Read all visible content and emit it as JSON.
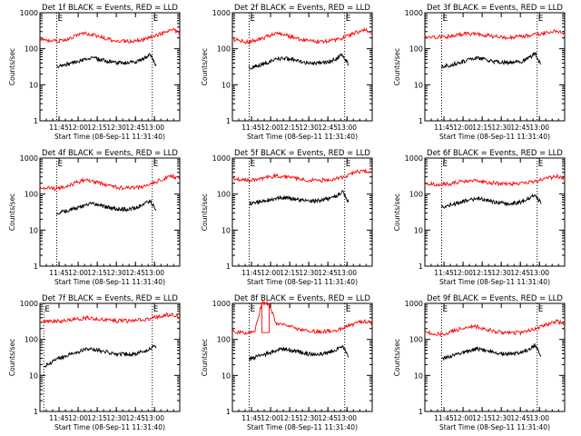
{
  "figure": {
    "background": "#ffffff",
    "events_color": "#000000",
    "lld_color": "#ff0000"
  },
  "chart_data": [
    {
      "type": "line",
      "title": "Det 1f BLACK = Events, RED = LLD",
      "xlabel": "Start Time (08-Sep-11 11:31:40)",
      "ylabel": "Counts/sec",
      "ylog": true,
      "ylim": [
        1,
        1000
      ],
      "yticks": [
        "1",
        "10",
        "100",
        "1000"
      ],
      "xlim_min": [
        11.5,
        13.33
      ],
      "xticks": [
        "11:45",
        "12:00",
        "12:15",
        "12:30",
        "12:45",
        "13:00"
      ],
      "marker": "E",
      "marker_times": [
        11.72,
        12.97
      ],
      "series": [
        {
          "name": "Events",
          "color": "#000000",
          "shape": "a",
          "start": 11.72,
          "end": 13.02,
          "values": [
            33,
            35,
            38,
            42,
            47,
            52,
            55,
            52,
            48,
            44,
            42,
            41,
            40,
            42,
            45,
            55,
            70,
            35
          ]
        },
        {
          "name": "LLD",
          "color": "#ff0000",
          "shape": "a",
          "start": 11.5,
          "end": 13.33,
          "values": [
            190,
            170,
            160,
            170,
            190,
            230,
            260,
            250,
            220,
            190,
            170,
            165,
            160,
            165,
            175,
            200,
            240,
            290,
            340,
            280
          ]
        }
      ]
    },
    {
      "type": "line",
      "title": "Det 2f BLACK = Events, RED = LLD",
      "xlabel": "Start Time (08-Sep-11 11:31:40)",
      "ylabel": "Counts/sec",
      "ylog": true,
      "ylim": [
        1,
        1000
      ],
      "yticks": [
        "1",
        "10",
        "100",
        "1000"
      ],
      "xlim_min": [
        11.5,
        13.33
      ],
      "xticks": [
        "11:45",
        "12:00",
        "12:15",
        "12:30",
        "12:45",
        "13:00"
      ],
      "marker": "E",
      "marker_times": [
        11.72,
        12.97
      ],
      "series": [
        {
          "name": "Events",
          "color": "#000000",
          "shape": "a",
          "start": 11.72,
          "end": 13.02,
          "values": [
            30,
            32,
            36,
            40,
            46,
            52,
            55,
            52,
            47,
            43,
            41,
            40,
            40,
            42,
            45,
            55,
            70,
            35
          ]
        },
        {
          "name": "LLD",
          "color": "#ff0000",
          "shape": "a",
          "start": 11.5,
          "end": 13.33,
          "values": [
            185,
            165,
            155,
            165,
            190,
            230,
            255,
            245,
            215,
            185,
            170,
            160,
            158,
            162,
            175,
            200,
            240,
            290,
            330,
            270
          ]
        }
      ]
    },
    {
      "type": "line",
      "title": "Det 3f BLACK = Events, RED = LLD",
      "xlabel": "Start Time (08-Sep-11 11:31:40)",
      "ylabel": "Counts/sec",
      "ylog": true,
      "ylim": [
        1,
        1000
      ],
      "yticks": [
        "1",
        "10",
        "100",
        "1000"
      ],
      "xlim_min": [
        11.5,
        13.33
      ],
      "xticks": [
        "11:45",
        "12:00",
        "12:15",
        "12:30",
        "12:45",
        "13:00"
      ],
      "marker": "E",
      "marker_times": [
        11.72,
        12.97
      ],
      "series": [
        {
          "name": "Events",
          "color": "#000000",
          "shape": "a",
          "start": 11.72,
          "end": 13.02,
          "values": [
            32,
            34,
            37,
            41,
            46,
            52,
            55,
            52,
            48,
            44,
            42,
            41,
            40,
            42,
            46,
            56,
            75,
            36
          ]
        },
        {
          "name": "LLD",
          "color": "#ff0000",
          "shape": "b",
          "start": 11.5,
          "end": 13.33,
          "values": [
            220,
            215,
            210,
            215,
            230,
            250,
            260,
            255,
            240,
            225,
            215,
            210,
            210,
            215,
            225,
            245,
            270,
            300,
            320,
            280
          ]
        }
      ]
    },
    {
      "type": "line",
      "title": "Det 4f BLACK = Events, RED = LLD",
      "xlabel": "Start Time (08-Sep-11 11:31:40)",
      "ylabel": "Counts/sec",
      "ylog": true,
      "ylim": [
        1,
        1000
      ],
      "yticks": [
        "1",
        "10",
        "100",
        "1000"
      ],
      "xlim_min": [
        11.5,
        13.33
      ],
      "xticks": [
        "11:45",
        "12:00",
        "12:15",
        "12:30",
        "12:45",
        "13:00"
      ],
      "marker": "E",
      "marker_times": [
        11.72,
        12.97
      ],
      "series": [
        {
          "name": "Events",
          "color": "#000000",
          "shape": "a",
          "start": 11.72,
          "end": 13.02,
          "values": [
            30,
            32,
            35,
            40,
            45,
            50,
            54,
            50,
            46,
            42,
            40,
            38,
            38,
            40,
            44,
            52,
            68,
            34
          ]
        },
        {
          "name": "LLD",
          "color": "#ff0000",
          "shape": "a",
          "start": 11.5,
          "end": 13.33,
          "values": [
            160,
            145,
            140,
            150,
            170,
            210,
            240,
            230,
            200,
            175,
            160,
            150,
            148,
            152,
            165,
            190,
            230,
            280,
            320,
            260
          ]
        }
      ]
    },
    {
      "type": "line",
      "title": "Det 5f BLACK = Events, RED = LLD",
      "xlabel": "Start Time (08-Sep-11 11:31:40)",
      "ylabel": "Counts/sec",
      "ylog": true,
      "ylim": [
        1,
        1000
      ],
      "yticks": [
        "1",
        "10",
        "100",
        "1000"
      ],
      "xlim_min": [
        11.5,
        13.33
      ],
      "xticks": [
        "11:45",
        "12:00",
        "12:15",
        "12:30",
        "12:45",
        "13:00"
      ],
      "marker": "E",
      "marker_times": [
        11.72,
        12.97
      ],
      "series": [
        {
          "name": "Events",
          "color": "#000000",
          "shape": "b",
          "start": 11.72,
          "end": 13.02,
          "values": [
            55,
            58,
            62,
            68,
            72,
            78,
            80,
            76,
            70,
            66,
            64,
            64,
            66,
            70,
            78,
            92,
            118,
            60
          ]
        },
        {
          "name": "LLD",
          "color": "#ff0000",
          "shape": "b",
          "start": 11.5,
          "end": 13.33,
          "values": [
            270,
            255,
            245,
            250,
            270,
            300,
            320,
            310,
            285,
            260,
            245,
            240,
            242,
            250,
            270,
            300,
            350,
            420,
            450,
            380
          ]
        }
      ]
    },
    {
      "type": "line",
      "title": "Det 6f BLACK = Events, RED = LLD",
      "xlabel": "Start Time (08-Sep-11 11:31:40)",
      "ylabel": "Counts/sec",
      "ylog": true,
      "ylim": [
        1,
        1000
      ],
      "yticks": [
        "1",
        "10",
        "100",
        "1000"
      ],
      "xlim_min": [
        11.5,
        13.33
      ],
      "xticks": [
        "11:45",
        "12:00",
        "12:15",
        "12:30",
        "12:45",
        "13:00"
      ],
      "marker": "E",
      "marker_times": [
        11.72,
        12.97
      ],
      "series": [
        {
          "name": "Events",
          "color": "#000000",
          "shape": "b",
          "start": 11.72,
          "end": 13.02,
          "values": [
            45,
            48,
            52,
            58,
            64,
            70,
            74,
            72,
            66,
            60,
            57,
            55,
            55,
            58,
            64,
            76,
            95,
            55
          ]
        },
        {
          "name": "LLD",
          "color": "#ff0000",
          "shape": "b",
          "start": 11.5,
          "end": 13.33,
          "values": [
            200,
            190,
            185,
            190,
            205,
            225,
            240,
            235,
            220,
            205,
            195,
            190,
            190,
            195,
            205,
            225,
            250,
            285,
            310,
            270
          ]
        }
      ]
    },
    {
      "type": "line",
      "title": "Det 7f BLACK = Events, RED = LLD",
      "xlabel": "Start Time (08-Sep-11 11:31:40)",
      "ylabel": "Counts/sec",
      "ylog": true,
      "ylim": [
        1,
        1000
      ],
      "yticks": [
        "1",
        "10",
        "100",
        "1000"
      ],
      "xlim_min": [
        11.5,
        13.33
      ],
      "xticks": [
        "11:45",
        "12:00",
        "12:15",
        "12:30",
        "12:45",
        "13:00"
      ],
      "marker": "E",
      "marker_times": [
        11.55,
        12.97
      ],
      "series": [
        {
          "name": "Events",
          "color": "#000000",
          "shape": "a",
          "start": 11.55,
          "end": 13.02,
          "values": [
            18,
            22,
            28,
            33,
            38,
            44,
            50,
            54,
            51,
            47,
            43,
            40,
            39,
            39,
            41,
            45,
            53,
            68
          ]
        },
        {
          "name": "LLD",
          "color": "#ff0000",
          "shape": "b",
          "start": 11.5,
          "end": 13.33,
          "values": [
            330,
            320,
            310,
            320,
            340,
            370,
            390,
            385,
            365,
            345,
            330,
            325,
            325,
            335,
            355,
            385,
            425,
            470,
            490,
            430
          ]
        }
      ]
    },
    {
      "type": "line",
      "title": "Det 8f BLACK = Events, RED = LLD",
      "xlabel": "Start Time (08-Sep-11 11:31:40)",
      "ylabel": "Counts/sec",
      "ylog": true,
      "ylim": [
        1,
        1000
      ],
      "yticks": [
        "1",
        "10",
        "100",
        "1000"
      ],
      "xlim_min": [
        11.5,
        13.33
      ],
      "xticks": [
        "11:45",
        "12:00",
        "12:15",
        "12:30",
        "12:45",
        "13:00"
      ],
      "marker": "E",
      "marker_times": [
        11.72,
        12.97
      ],
      "series": [
        {
          "name": "Events",
          "color": "#000000",
          "shape": "a",
          "start": 11.72,
          "end": 13.02,
          "values": [
            30,
            32,
            35,
            40,
            45,
            50,
            54,
            50,
            46,
            42,
            40,
            39,
            39,
            41,
            45,
            54,
            68,
            34
          ]
        },
        {
          "name": "LLD",
          "color": "#ff0000",
          "shape": "spike",
          "start": 11.5,
          "end": 13.33,
          "values": [
            170,
            155,
            150,
            155,
            1000,
            1000,
            260,
            250,
            220,
            190,
            175,
            168,
            165,
            170,
            180,
            205,
            245,
            290,
            330,
            270
          ]
        }
      ]
    },
    {
      "type": "line",
      "title": "Det 9f BLACK = Events, RED = LLD",
      "xlabel": "Start Time (08-Sep-11 11:31:40)",
      "ylabel": "Counts/sec",
      "ylog": true,
      "ylim": [
        1,
        1000
      ],
      "yticks": [
        "1",
        "10",
        "100",
        "1000"
      ],
      "xlim_min": [
        11.5,
        13.33
      ],
      "xticks": [
        "11:45",
        "12:00",
        "12:15",
        "12:30",
        "12:45",
        "13:00"
      ],
      "marker": "E",
      "marker_times": [
        11.72,
        12.97
      ],
      "series": [
        {
          "name": "Events",
          "color": "#000000",
          "shape": "a",
          "start": 11.72,
          "end": 13.02,
          "values": [
            30,
            32,
            35,
            40,
            45,
            50,
            55,
            52,
            47,
            43,
            40,
            39,
            39,
            41,
            45,
            54,
            70,
            36
          ]
        },
        {
          "name": "LLD",
          "color": "#ff0000",
          "shape": "a",
          "start": 11.5,
          "end": 13.33,
          "values": [
            170,
            150,
            140,
            150,
            170,
            205,
            235,
            228,
            200,
            175,
            160,
            152,
            150,
            155,
            168,
            195,
            235,
            280,
            320,
            260
          ]
        }
      ]
    }
  ]
}
